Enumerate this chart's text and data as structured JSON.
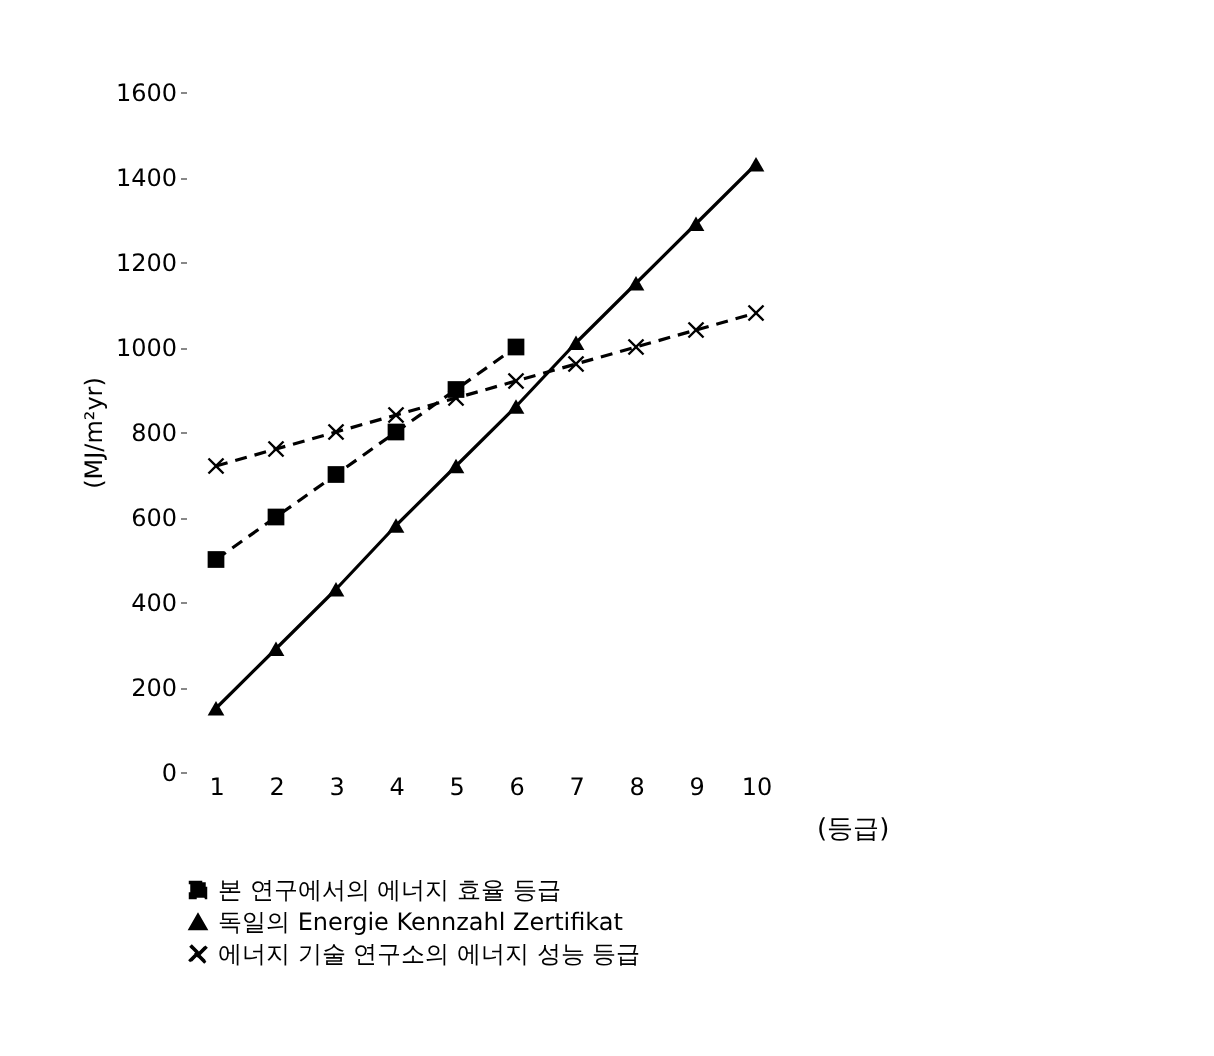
{
  "chart_data": {
    "type": "line",
    "ylabel": "(MJ/m²yr)",
    "xlabel": "(등급)",
    "categories": [
      "1",
      "2",
      "3",
      "4",
      "5",
      "6",
      "7",
      "8",
      "9",
      "10"
    ],
    "series": [
      {
        "name": "본 연구에서의 에너지 효율 등급",
        "color": "#000000",
        "marker": "square",
        "line_style": "dashed",
        "values": [
          500,
          600,
          700,
          800,
          900,
          1000,
          null,
          null,
          null,
          null
        ]
      },
      {
        "name": "독일의 Energie Kennzahl Zertifikat",
        "color": "#000000",
        "marker": "triangle",
        "line_style": "solid",
        "values": [
          150,
          290,
          430,
          580,
          720,
          860,
          1010,
          1150,
          1290,
          1430
        ]
      },
      {
        "name": "에너지 기술 연구소의 에너지 성능 등급",
        "color": "#000000",
        "marker": "cross",
        "line_style": "dashed",
        "values": [
          720,
          760,
          800,
          840,
          880,
          920,
          960,
          1000,
          1040,
          1080
        ]
      }
    ],
    "ylim": [
      0,
      1600
    ],
    "yticks": [
      0,
      200,
      400,
      600,
      800,
      1000,
      1200,
      1400,
      1600
    ],
    "grid": false,
    "legend": "bottom"
  }
}
